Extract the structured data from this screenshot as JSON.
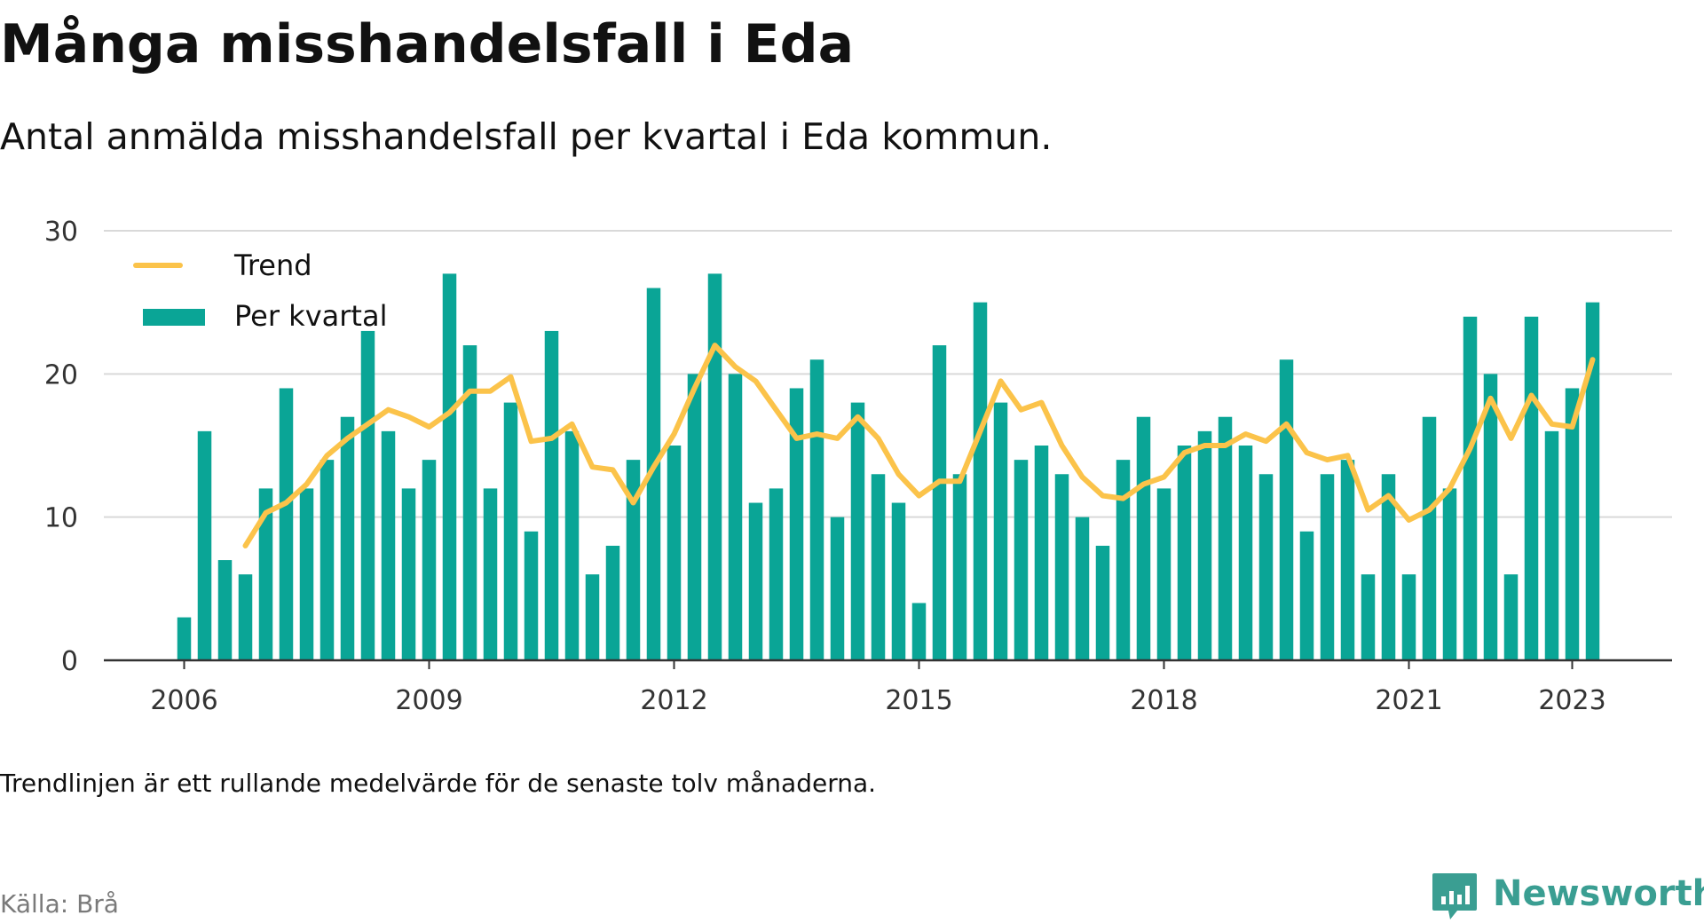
{
  "title": "Många misshandelsfall i Eda",
  "subtitle": "Antal anmälda misshandelsfall per kvartal i Eda kommun.",
  "note": "Trendlinjen är ett rullande medelvärde för de senaste tolv månaderna.",
  "source": "Källa: Brå",
  "brand": {
    "name": "Newsworthy",
    "icon": "newsworthy-logo-icon",
    "color": "#3a9e92"
  },
  "colors": {
    "bar": "#0aa596",
    "trend": "#fbc34a",
    "grid": "#d9d9d9",
    "axis": "#333333"
  },
  "chart_data": {
    "type": "bar",
    "title": "Många misshandelsfall i Eda",
    "subtitle": "Antal anmälda misshandelsfall per kvartal i Eda kommun.",
    "ylim": [
      0,
      30
    ],
    "yticks": [
      0,
      10,
      20,
      30
    ],
    "xticks": [
      "2006",
      "2009",
      "2012",
      "2015",
      "2018",
      "2021",
      "2023"
    ],
    "xtick_positions": [
      2006.0,
      2009.0,
      2012.0,
      2015.0,
      2018.0,
      2021.0,
      2023.0
    ],
    "start_quarter": "2006 Q1",
    "grid": true,
    "legend": "top-left",
    "series": [
      {
        "name": "Per kvartal",
        "type": "bar",
        "values": [
          3,
          16,
          7,
          6,
          12,
          19,
          12,
          14,
          17,
          23,
          16,
          12,
          14,
          27,
          22,
          12,
          18,
          9,
          23,
          16,
          6,
          8,
          14,
          26,
          15,
          20,
          27,
          20,
          11,
          12,
          19,
          21,
          10,
          18,
          13,
          11,
          4,
          22,
          13,
          25,
          18,
          14,
          15,
          13,
          10,
          8,
          14,
          17,
          12,
          15,
          16,
          17,
          15,
          13,
          21,
          9,
          13,
          14,
          6,
          13,
          6,
          17,
          12,
          24,
          20,
          6,
          24,
          16,
          19,
          25
        ]
      },
      {
        "name": "Trend",
        "type": "line",
        "values": [
          null,
          null,
          null,
          8.0,
          10.3,
          11.0,
          12.3,
          14.3,
          15.5,
          16.5,
          17.5,
          17.0,
          16.3,
          17.3,
          18.8,
          18.8,
          19.8,
          15.3,
          15.5,
          16.5,
          13.5,
          13.3,
          11.0,
          13.5,
          15.8,
          19.0,
          22.0,
          20.5,
          19.5,
          17.5,
          15.5,
          15.8,
          15.5,
          17.0,
          15.5,
          13.0,
          11.5,
          12.5,
          12.5,
          16.0,
          19.5,
          17.5,
          18.0,
          15.0,
          12.8,
          11.5,
          11.3,
          12.3,
          12.8,
          14.5,
          15.0,
          15.0,
          15.8,
          15.3,
          16.5,
          14.5,
          14.0,
          14.3,
          10.5,
          11.5,
          9.8,
          10.5,
          12.0,
          14.8,
          18.3,
          15.5,
          18.5,
          16.5,
          16.3,
          21.0
        ]
      }
    ]
  }
}
